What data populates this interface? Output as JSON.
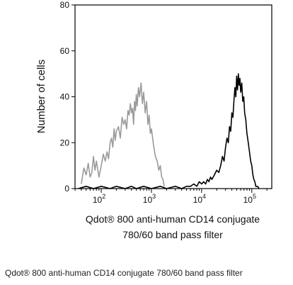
{
  "chart_data": {
    "type": "line",
    "title": "",
    "xlabel": [
      "Qdot® 800 anti-human CD14 conjugate",
      "780/60 band pass filter"
    ],
    "ylabel": "Number of cells",
    "x_scale": "log",
    "xlim": [
      30,
      250000
    ],
    "ylim": [
      0,
      80
    ],
    "y_ticks": [
      0,
      20,
      40,
      60,
      80
    ],
    "x_ticks": [
      {
        "value": 100,
        "base": "10",
        "exp": "2"
      },
      {
        "value": 1000,
        "base": "10",
        "exp": "3"
      },
      {
        "value": 10000,
        "base": "10",
        "exp": "4"
      },
      {
        "value": 100000,
        "base": "10",
        "exp": "5"
      }
    ],
    "grid": false,
    "series": [
      {
        "color": "#9a9a9a",
        "x": [
          40,
          45,
          50,
          55,
          60,
          65,
          70,
          75,
          80,
          90,
          100,
          110,
          120,
          130,
          140,
          150,
          160,
          170,
          180,
          190,
          200,
          220,
          240,
          260,
          280,
          300,
          320,
          340,
          360,
          380,
          400,
          420,
          440,
          460,
          480,
          500,
          520,
          550,
          580,
          620,
          660,
          700,
          750,
          800,
          850,
          900,
          950,
          1000,
          1100,
          1200,
          1300,
          1400,
          1500,
          1600,
          1700,
          1800
        ],
        "y": [
          2,
          9,
          6,
          11,
          5,
          7,
          14,
          8,
          12,
          5,
          10,
          15,
          12,
          16,
          13,
          20,
          22,
          18,
          26,
          21,
          25,
          27,
          22,
          31,
          28,
          30,
          26,
          34,
          32,
          37,
          33,
          35,
          28,
          38,
          34,
          41,
          36,
          44,
          40,
          46,
          37,
          42,
          33,
          38,
          28,
          32,
          24,
          26,
          19,
          14,
          12,
          8,
          10,
          5,
          4,
          1
        ]
      },
      {
        "color": "#000000",
        "x": [
          35,
          50,
          70,
          100,
          150,
          200,
          300,
          400,
          500,
          700,
          1000,
          1500,
          2000,
          3000,
          4000,
          5000,
          6000,
          7000,
          8000,
          9000,
          10000,
          11000,
          12000,
          13000,
          14000,
          15000,
          16000,
          18000,
          20000,
          22000,
          24000,
          26000,
          28000,
          30000,
          32000,
          34000,
          36000,
          38000,
          40000,
          42000,
          44000,
          46000,
          48000,
          50000,
          52000,
          54000,
          56000,
          58000,
          60000,
          63000,
          66000,
          69000,
          72000,
          76000,
          80000,
          85000,
          90000,
          95000,
          100000,
          105000,
          110000,
          115000,
          120000,
          130000,
          140000
        ],
        "y": [
          0,
          1,
          0,
          1,
          0,
          1,
          0,
          1,
          0,
          1,
          0,
          1,
          0,
          1,
          0,
          1,
          1,
          2,
          1,
          3,
          2,
          3,
          2,
          4,
          3,
          5,
          4,
          6,
          8,
          7,
          10,
          14,
          12,
          18,
          22,
          20,
          27,
          25,
          33,
          31,
          38,
          44,
          40,
          49,
          43,
          50,
          45,
          48,
          42,
          46,
          38,
          40,
          33,
          30,
          24,
          20,
          16,
          12,
          10,
          6,
          4,
          3,
          1,
          1,
          0
        ]
      }
    ]
  },
  "caption": "Qdot® 800 anti-human CD14 conjugate 780/60 band pass filter"
}
